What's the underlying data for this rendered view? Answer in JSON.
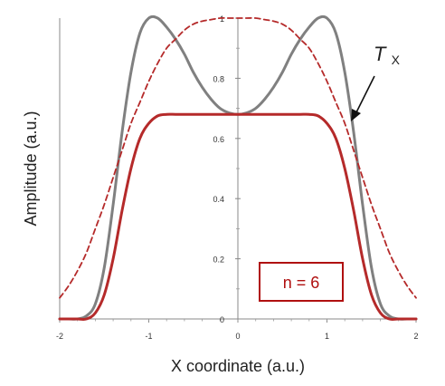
{
  "chart_data": {
    "type": "line",
    "xlabel": "X coordinate (a.u.)",
    "ylabel": "Amplitude (a.u.)",
    "xlim": [
      -2,
      2
    ],
    "ylim": [
      0,
      1
    ],
    "x_ticks": [
      -2,
      -1,
      0,
      1,
      2
    ],
    "x_tick_labels": [
      "-2",
      "-1",
      "0",
      "1",
      "2"
    ],
    "y_ticks": [
      0,
      0.2,
      0.4,
      0.6,
      0.8,
      1
    ],
    "y_tick_labels": [
      "0",
      "0.2",
      "0.4",
      "0.6",
      "0.8",
      "1"
    ],
    "grid": false,
    "x": [
      -2.0,
      -1.9,
      -1.8,
      -1.7,
      -1.6,
      -1.5,
      -1.4,
      -1.3,
      -1.2,
      -1.1,
      -1.0,
      -0.9,
      -0.8,
      -0.7,
      -0.6,
      -0.5,
      -0.4,
      -0.3,
      -0.2,
      -0.1,
      0.0,
      0.1,
      0.2,
      0.3,
      0.4,
      0.5,
      0.6,
      0.7,
      0.8,
      0.9,
      1.0,
      1.1,
      1.2,
      1.3,
      1.4,
      1.5,
      1.6,
      1.7,
      1.8,
      1.9,
      2.0
    ],
    "series": [
      {
        "style": "solid",
        "color": "#808080",
        "values": [
          0.0,
          0.0,
          0.0,
          0.01,
          0.05,
          0.17,
          0.38,
          0.62,
          0.82,
          0.95,
          1.0,
          1.0,
          0.97,
          0.93,
          0.88,
          0.82,
          0.77,
          0.73,
          0.7,
          0.685,
          0.68,
          0.685,
          0.7,
          0.73,
          0.77,
          0.82,
          0.88,
          0.93,
          0.97,
          1.0,
          1.0,
          0.95,
          0.82,
          0.62,
          0.38,
          0.17,
          0.05,
          0.01,
          0.0,
          0.0,
          0.0
        ]
      },
      {
        "style": "solid",
        "color": "#b52a2a",
        "values": [
          0.0,
          0.0,
          0.0,
          0.0,
          0.02,
          0.08,
          0.2,
          0.36,
          0.5,
          0.6,
          0.65,
          0.675,
          0.68,
          0.68,
          0.68,
          0.68,
          0.68,
          0.68,
          0.68,
          0.68,
          0.68,
          0.68,
          0.68,
          0.68,
          0.68,
          0.68,
          0.68,
          0.68,
          0.68,
          0.675,
          0.65,
          0.6,
          0.5,
          0.36,
          0.2,
          0.08,
          0.02,
          0.0,
          0.0,
          0.0,
          0.0
        ]
      },
      {
        "style": "dashed",
        "color": "#b52a2a",
        "values": [
          0.07,
          0.11,
          0.16,
          0.22,
          0.3,
          0.38,
          0.47,
          0.56,
          0.65,
          0.72,
          0.79,
          0.85,
          0.9,
          0.93,
          0.96,
          0.98,
          0.99,
          0.995,
          1.0,
          1.0,
          1.0,
          1.0,
          1.0,
          0.995,
          0.99,
          0.98,
          0.96,
          0.93,
          0.9,
          0.85,
          0.79,
          0.72,
          0.65,
          0.56,
          0.47,
          0.38,
          0.3,
          0.22,
          0.16,
          0.11,
          0.07
        ]
      }
    ],
    "annotations": [
      {
        "text_main": "T",
        "text_sub": "X"
      },
      {
        "text": "n = 6",
        "color": "#b01010"
      }
    ]
  }
}
